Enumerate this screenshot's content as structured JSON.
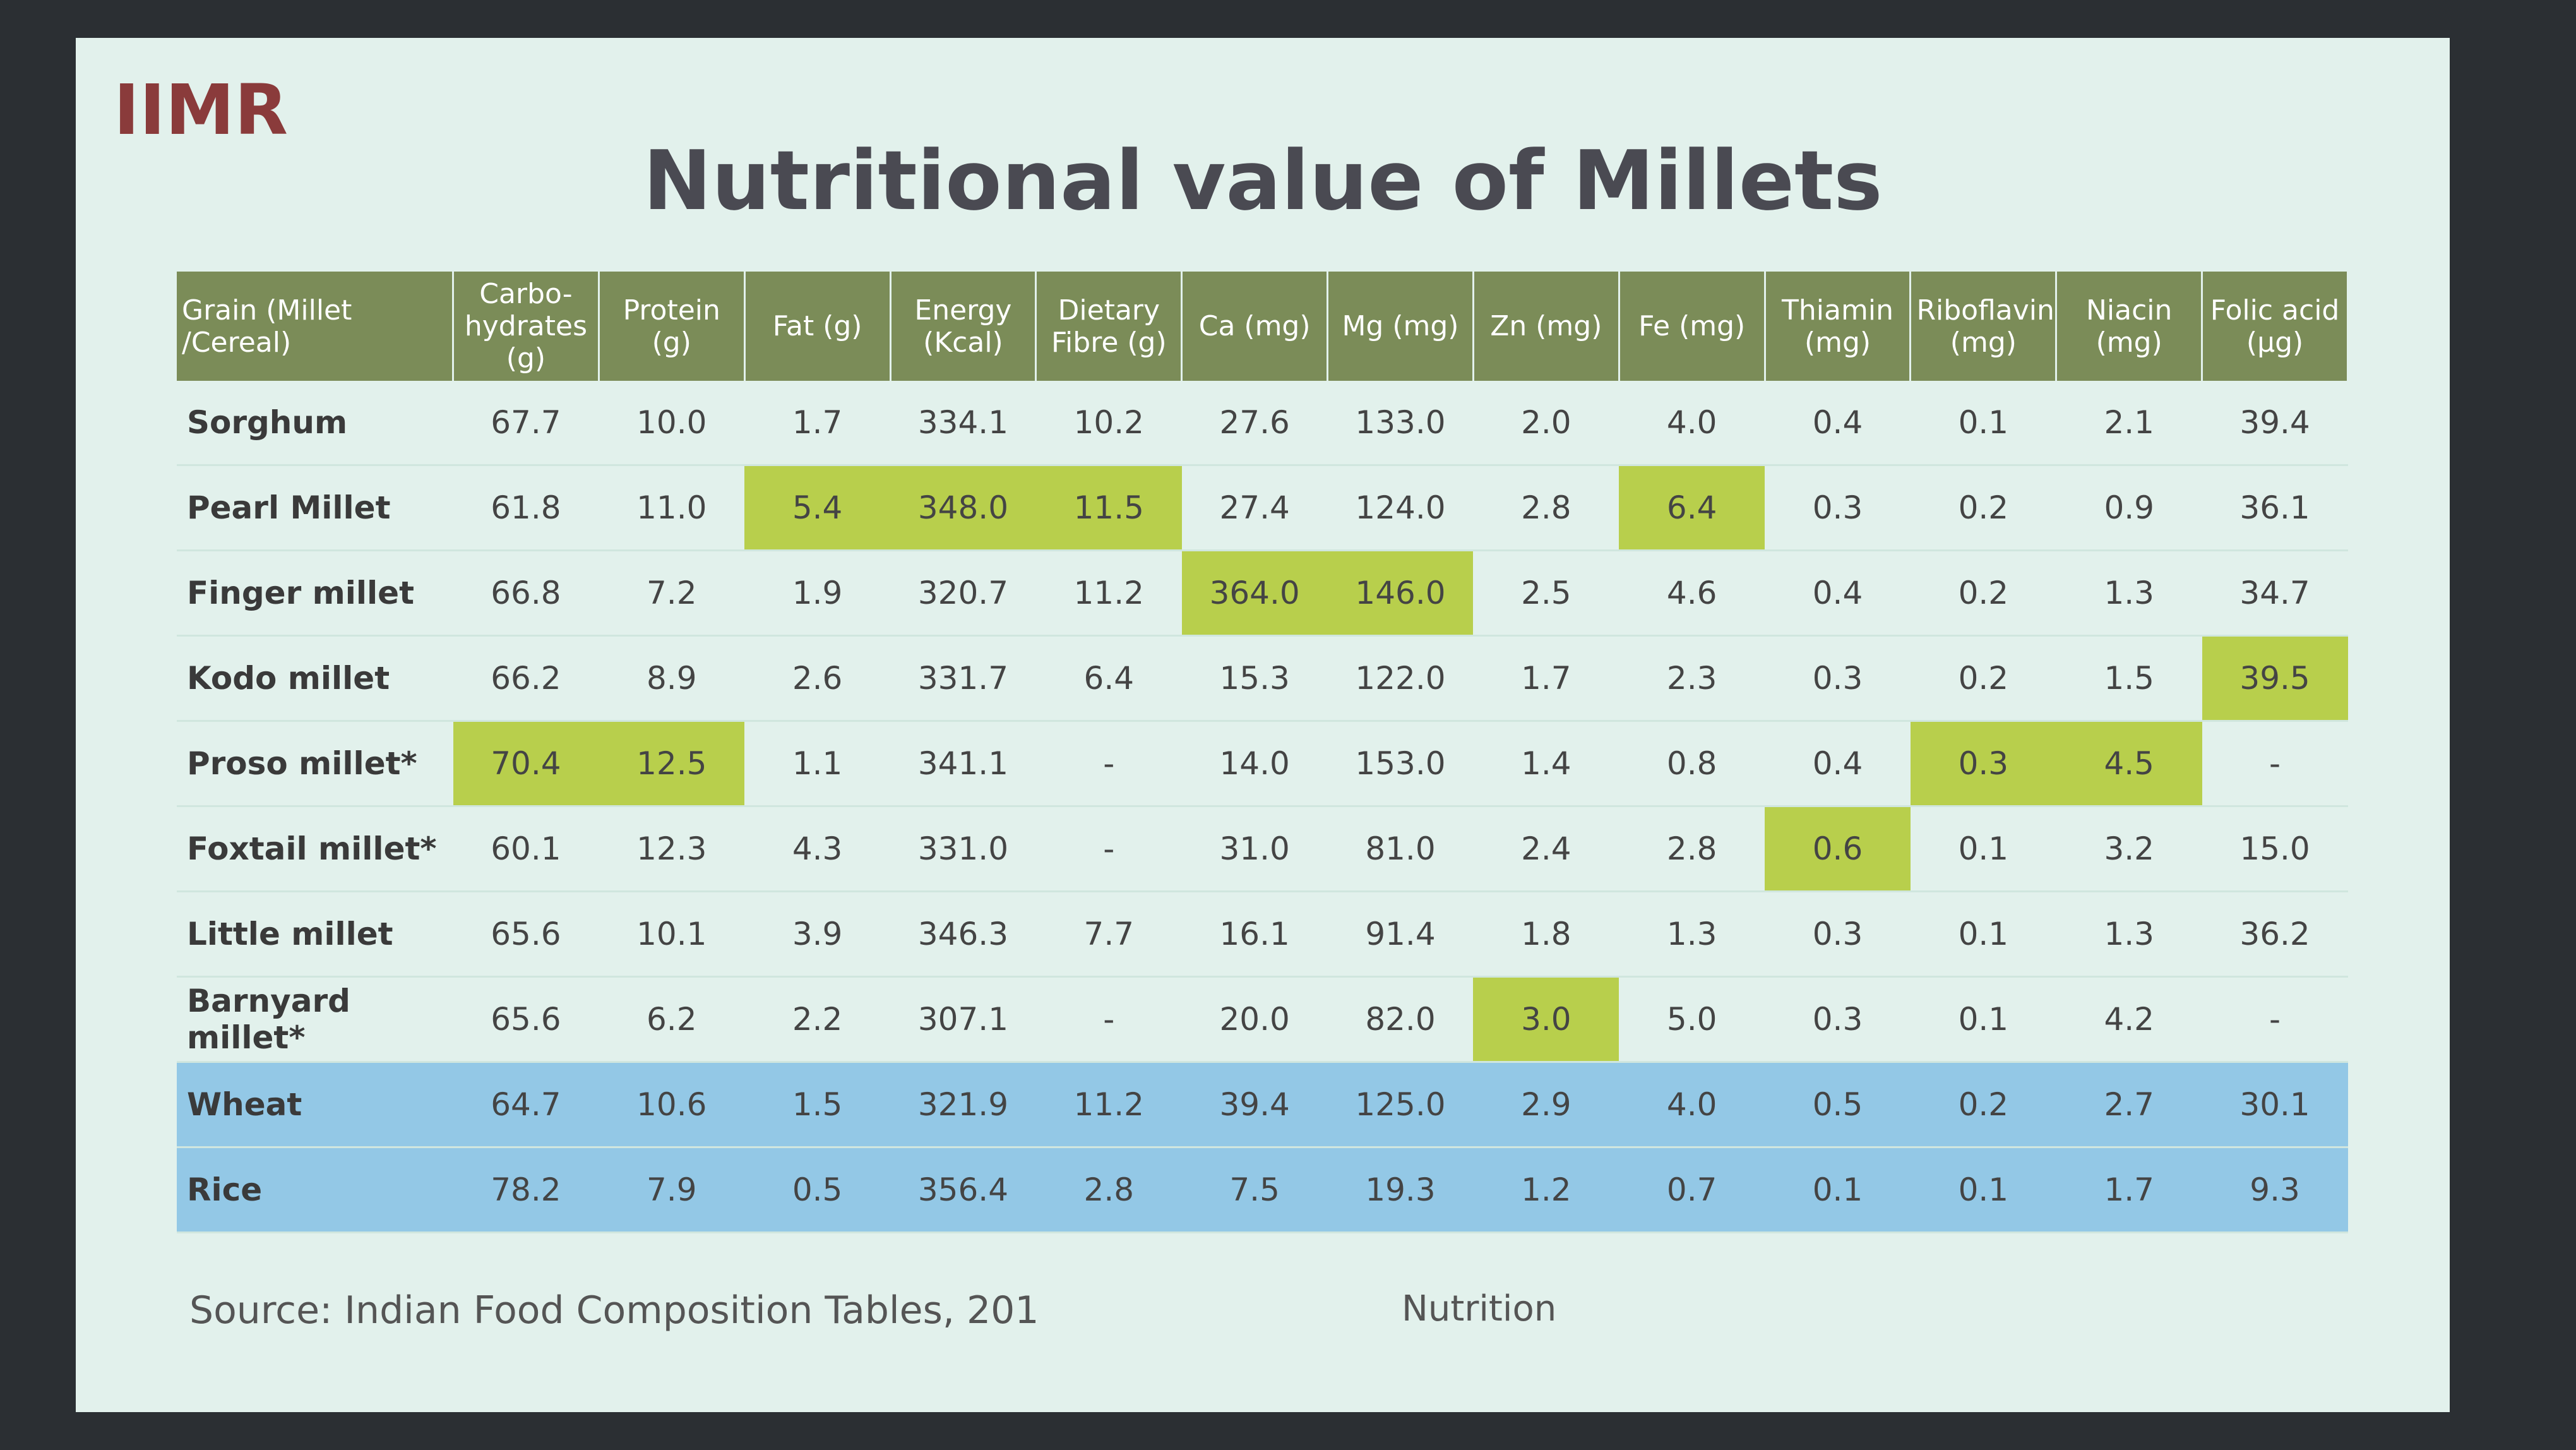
{
  "header": {
    "logo": "IIMR",
    "title": "Nutritional value of Millets"
  },
  "table": {
    "highlight_color": "#b8cf4c",
    "columns": [
      "Grain (Millet /Cereal)",
      "Carbo- hydrates (g)",
      "Protein (g)",
      "Fat (g)",
      "Energy (Kcal)",
      "Dietary Fibre (g)",
      "Ca (mg)",
      "Mg (mg)",
      "Zn (mg)",
      "Fe (mg)",
      "Thiamin (mg)",
      "Riboflavin (mg)",
      "Niacin (mg)",
      "Folic acid (µg)"
    ],
    "rows": [
      {
        "name": "Sorghum",
        "values": [
          "67.7",
          "10.0",
          "1.7",
          "334.1",
          "10.2",
          "27.6",
          "133.0",
          "2.0",
          "4.0",
          "0.4",
          "0.1",
          "2.1",
          "39.4"
        ],
        "highlight": []
      },
      {
        "name": "Pearl Millet",
        "values": [
          "61.8",
          "11.0",
          "5.4",
          "348.0",
          "11.5",
          "27.4",
          "124.0",
          "2.8",
          "6.4",
          "0.3",
          "0.2",
          "0.9",
          "36.1"
        ],
        "highlight": [
          2,
          3,
          4,
          8
        ]
      },
      {
        "name": "Finger millet",
        "values": [
          "66.8",
          "7.2",
          "1.9",
          "320.7",
          "11.2",
          "364.0",
          "146.0",
          "2.5",
          "4.6",
          "0.4",
          "0.2",
          "1.3",
          "34.7"
        ],
        "highlight": [
          5,
          6
        ]
      },
      {
        "name": "Kodo millet",
        "values": [
          "66.2",
          "8.9",
          "2.6",
          "331.7",
          "6.4",
          "15.3",
          "122.0",
          "1.7",
          "2.3",
          "0.3",
          "0.2",
          "1.5",
          "39.5"
        ],
        "highlight": [
          12
        ]
      },
      {
        "name": "Proso millet*",
        "values": [
          "70.4",
          "12.5",
          "1.1",
          "341.1",
          "-",
          "14.0",
          "153.0",
          "1.4",
          "0.8",
          "0.4",
          "0.3",
          "4.5",
          "-"
        ],
        "highlight": [
          0,
          1,
          10,
          11
        ]
      },
      {
        "name": "Foxtail millet*",
        "values": [
          "60.1",
          "12.3",
          "4.3",
          "331.0",
          "-",
          "31.0",
          "81.0",
          "2.4",
          "2.8",
          "0.6",
          "0.1",
          "3.2",
          "15.0"
        ],
        "highlight": [
          9
        ]
      },
      {
        "name": "Little millet",
        "values": [
          "65.6",
          "10.1",
          "3.9",
          "346.3",
          "7.7",
          "16.1",
          "91.4",
          "1.8",
          "1.3",
          "0.3",
          "0.1",
          "1.3",
          "36.2"
        ],
        "highlight": []
      },
      {
        "name": "Barnyard millet*",
        "values": [
          "65.6",
          "6.2",
          "2.2",
          "307.1",
          "-",
          "20.0",
          "82.0",
          "3.0",
          "5.0",
          "0.3",
          "0.1",
          "4.2",
          "-"
        ],
        "highlight": [
          7
        ]
      },
      {
        "name": "Wheat",
        "values": [
          "64.7",
          "10.6",
          "1.5",
          "321.9",
          "11.2",
          "39.4",
          "125.0",
          "2.9",
          "4.0",
          "0.5",
          "0.2",
          "2.7",
          "30.1"
        ],
        "highlight": [],
        "row_color": "#93c8e6"
      },
      {
        "name": "Rice",
        "values": [
          "78.2",
          "7.9",
          "0.5",
          "356.4",
          "2.8",
          "7.5",
          "19.3",
          "1.2",
          "0.7",
          "0.1",
          "0.1",
          "1.7",
          "9.3"
        ],
        "highlight": [],
        "row_color": "#93c8e6"
      }
    ]
  },
  "footer": {
    "source": "Source: Indian Food Composition Tables, 201",
    "note": "Nutrition"
  }
}
